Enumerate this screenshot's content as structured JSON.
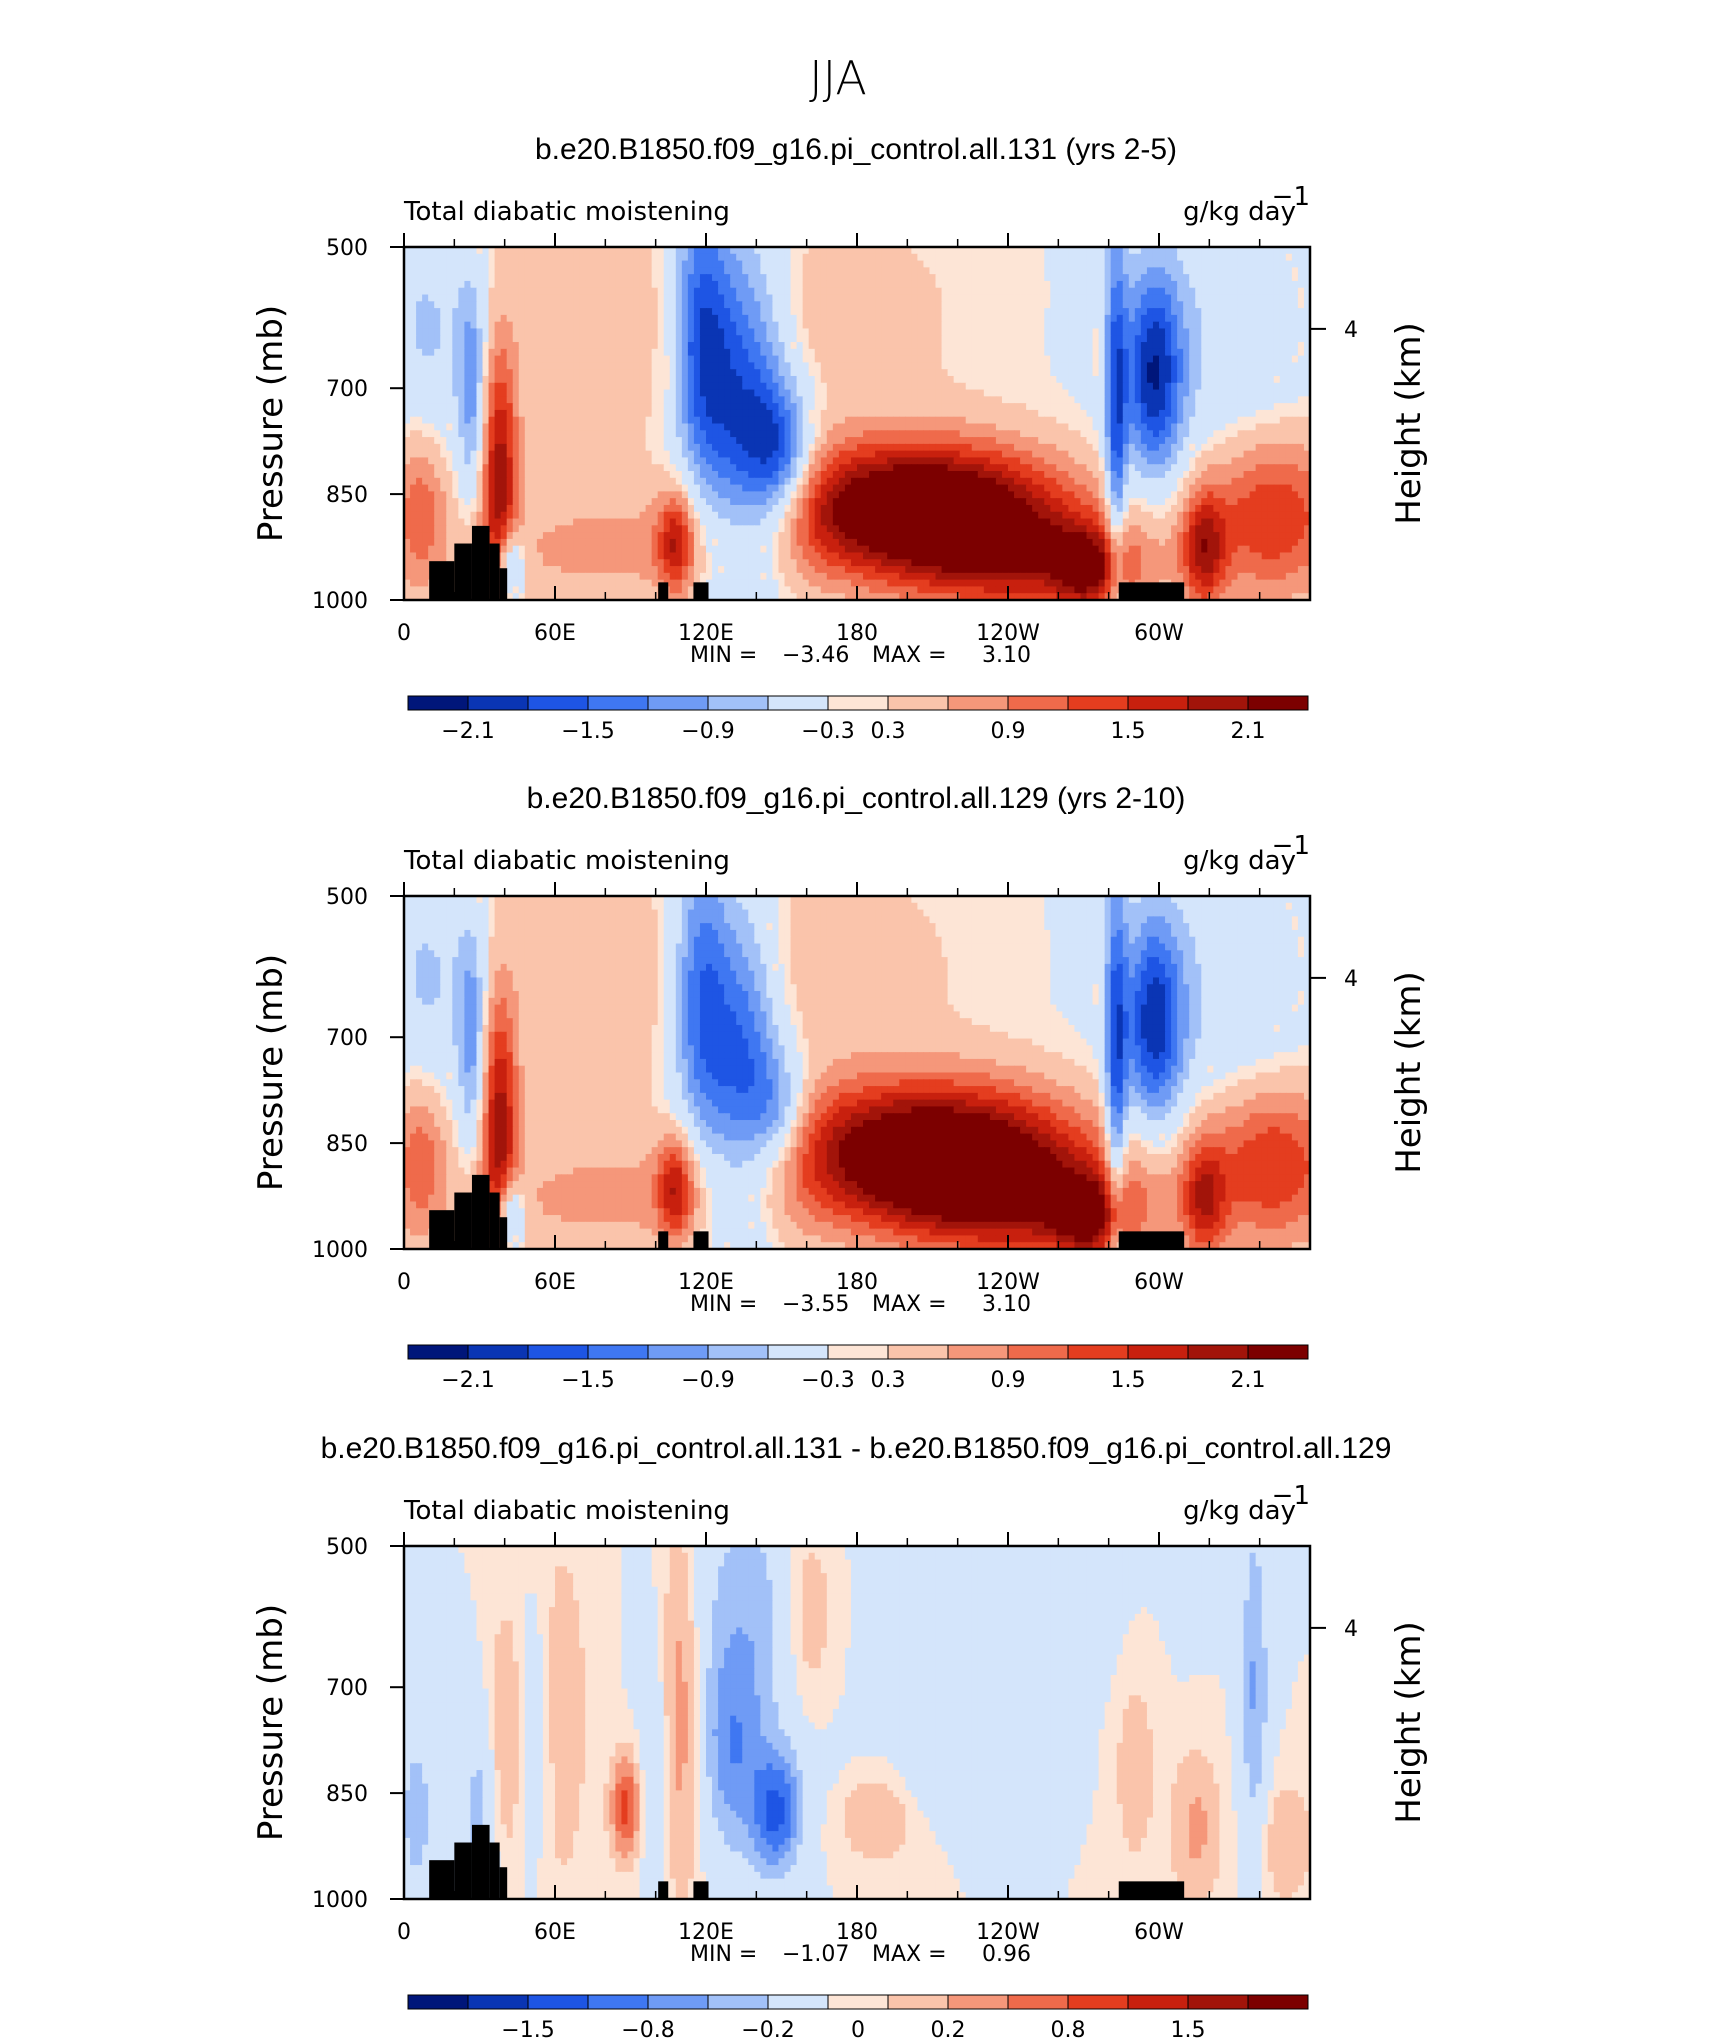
{
  "figure_title": "JJA",
  "colors": {
    "palette": [
      "#00167a",
      "#0a35b4",
      "#1e55e4",
      "#3f77f2",
      "#6f9bf5",
      "#a2c1f8",
      "#d4e5fb",
      "#fde5d6",
      "#fac4ab",
      "#f5977a",
      "#ef6a4b",
      "#e43d1f",
      "#c8200e",
      "#a2140a",
      "#7c0000"
    ],
    "land": "#000000",
    "frame": "#000000"
  },
  "chart_data": [
    {
      "type": "heatmap",
      "title": "b.e20.B1850.f09_g16.pi_control.all.131 (yrs 2-5)",
      "variable": "Total diabatic moistening",
      "units": "g/kg day",
      "units_exponent": "−1",
      "xlabel": "",
      "ylabel": "Pressure (mb)",
      "right_label": "Height (km)",
      "x_ticks": [
        "0",
        "60E",
        "120E",
        "180",
        "120W",
        "60W"
      ],
      "x_tick_lon": [
        0,
        60,
        120,
        180,
        240,
        300
      ],
      "xlim": [
        0,
        360
      ],
      "y_ticks": [
        "500",
        "700",
        "850",
        "1000"
      ],
      "y_tick_p": [
        500,
        700,
        850,
        1000
      ],
      "ylim": [
        500,
        1000
      ],
      "right_ticks": [
        "4"
      ],
      "right_tick_p": [
        616
      ],
      "stats": {
        "min_label": "MIN =",
        "min_value": "−3.46",
        "max_label": "MAX =",
        "max_value": "3.10"
      },
      "colorbar": {
        "labels": [
          "−2.1",
          "−1.5",
          "−0.9",
          "−0.3",
          "0.3",
          "0.9",
          "1.5",
          "2.1"
        ],
        "levels": [
          -2.4,
          -2.1,
          -1.8,
          -1.5,
          -1.2,
          -0.9,
          -0.6,
          -0.3,
          0,
          0.3,
          0.6,
          0.9,
          1.2,
          1.5,
          1.8,
          2.1,
          2.4
        ]
      },
      "fields": [
        {
          "lon": 205,
          "p": 870,
          "slon": 38,
          "sp": 65,
          "value": 3.1
        },
        {
          "lon": 248,
          "p": 945,
          "slon": 35,
          "sp": 55,
          "value": 1.4
        },
        {
          "lon": 272,
          "p": 960,
          "slon": 10,
          "sp": 40,
          "value": 1.4
        },
        {
          "lon": 38,
          "p": 830,
          "slon": 5,
          "sp": 130,
          "value": 1.9
        },
        {
          "lon": 6,
          "p": 870,
          "slon": 8,
          "sp": 80,
          "value": 1.0
        },
        {
          "lon": 345,
          "p": 880,
          "slon": 20,
          "sp": 80,
          "value": 1.5
        },
        {
          "lon": 318,
          "p": 930,
          "slon": 6,
          "sp": 60,
          "value": 1.5
        },
        {
          "lon": 108,
          "p": 920,
          "slon": 5,
          "sp": 50,
          "value": 1.4
        },
        {
          "lon": 80,
          "p": 930,
          "slon": 45,
          "sp": 60,
          "value": 0.55
        },
        {
          "lon": 165,
          "p": 600,
          "slon": 40,
          "sp": 110,
          "value": 0.35
        },
        {
          "lon": 70,
          "p": 620,
          "slon": 35,
          "sp": 150,
          "value": 0.3
        },
        {
          "lon": 135,
          "p": 730,
          "slon": 12,
          "sp": 170,
          "value": -1.8
        },
        {
          "lon": 150,
          "p": 800,
          "slon": 9,
          "sp": 70,
          "value": -1.4
        },
        {
          "lon": 118,
          "p": 620,
          "slon": 8,
          "sp": 140,
          "value": -1.6
        },
        {
          "lon": 298,
          "p": 680,
          "slon": 8,
          "sp": 100,
          "value": -1.9
        },
        {
          "lon": 283,
          "p": 750,
          "slon": 3,
          "sp": 200,
          "value": -1.5
        },
        {
          "lon": 42,
          "p": 950,
          "slon": 4,
          "sp": 40,
          "value": -1.5
        },
        {
          "lon": 27,
          "p": 700,
          "slon": 4,
          "sp": 110,
          "value": -1.0
        },
        {
          "lon": 320,
          "p": 640,
          "slon": 28,
          "sp": 160,
          "value": -0.4
        },
        {
          "lon": 10,
          "p": 620,
          "slon": 14,
          "sp": 120,
          "value": -0.6
        }
      ],
      "land": [
        {
          "lon0": 10,
          "lon1": 20,
          "p_top": 945
        },
        {
          "lon0": 20,
          "lon1": 27,
          "p_top": 920
        },
        {
          "lon0": 27,
          "lon1": 34,
          "p_top": 895
        },
        {
          "lon0": 34,
          "lon1": 38,
          "p_top": 920
        },
        {
          "lon0": 38,
          "lon1": 41,
          "p_top": 955
        },
        {
          "lon0": 101,
          "lon1": 105,
          "p_top": 975
        },
        {
          "lon0": 115,
          "lon1": 121,
          "p_top": 975
        },
        {
          "lon0": 284,
          "lon1": 310,
          "p_top": 975
        }
      ]
    },
    {
      "type": "heatmap",
      "title": "b.e20.B1850.f09_g16.pi_control.all.129 (yrs 2-10)",
      "variable": "Total diabatic moistening",
      "units": "g/kg day",
      "units_exponent": "−1",
      "xlabel": "",
      "ylabel": "Pressure (mb)",
      "right_label": "Height (km)",
      "x_ticks": [
        "0",
        "60E",
        "120E",
        "180",
        "120W",
        "60W"
      ],
      "x_tick_lon": [
        0,
        60,
        120,
        180,
        240,
        300
      ],
      "xlim": [
        0,
        360
      ],
      "y_ticks": [
        "500",
        "700",
        "850",
        "1000"
      ],
      "y_tick_p": [
        500,
        700,
        850,
        1000
      ],
      "ylim": [
        500,
        1000
      ],
      "right_ticks": [
        "4"
      ],
      "right_tick_p": [
        616
      ],
      "stats": {
        "min_label": "MIN =",
        "min_value": "−3.55",
        "max_label": "MAX =",
        "max_value": "3.10"
      },
      "colorbar": {
        "labels": [
          "−2.1",
          "−1.5",
          "−0.9",
          "−0.3",
          "0.3",
          "0.9",
          "1.5",
          "2.1"
        ],
        "levels": [
          -2.4,
          -2.1,
          -1.8,
          -1.5,
          -1.2,
          -0.9,
          -0.6,
          -0.3,
          0,
          0.3,
          0.6,
          0.9,
          1.2,
          1.5,
          1.8,
          2.1,
          2.4
        ]
      },
      "fields": [
        {
          "lon": 210,
          "p": 865,
          "slon": 40,
          "sp": 70,
          "value": 3.1
        },
        {
          "lon": 250,
          "p": 940,
          "slon": 35,
          "sp": 55,
          "value": 1.4
        },
        {
          "lon": 272,
          "p": 960,
          "slon": 10,
          "sp": 40,
          "value": 1.4
        },
        {
          "lon": 38,
          "p": 830,
          "slon": 5,
          "sp": 130,
          "value": 1.9
        },
        {
          "lon": 6,
          "p": 870,
          "slon": 8,
          "sp": 80,
          "value": 1.0
        },
        {
          "lon": 345,
          "p": 880,
          "slon": 20,
          "sp": 80,
          "value": 1.5
        },
        {
          "lon": 318,
          "p": 930,
          "slon": 6,
          "sp": 60,
          "value": 1.3
        },
        {
          "lon": 108,
          "p": 915,
          "slon": 5,
          "sp": 50,
          "value": 1.4
        },
        {
          "lon": 80,
          "p": 930,
          "slon": 45,
          "sp": 60,
          "value": 0.55
        },
        {
          "lon": 165,
          "p": 600,
          "slon": 40,
          "sp": 110,
          "value": 0.35
        },
        {
          "lon": 70,
          "p": 620,
          "slon": 35,
          "sp": 150,
          "value": 0.3
        },
        {
          "lon": 135,
          "p": 740,
          "slon": 10,
          "sp": 160,
          "value": -1.6
        },
        {
          "lon": 150,
          "p": 810,
          "slon": 8,
          "sp": 60,
          "value": -1.0
        },
        {
          "lon": 118,
          "p": 640,
          "slon": 8,
          "sp": 150,
          "value": -1.5
        },
        {
          "lon": 298,
          "p": 680,
          "slon": 8,
          "sp": 100,
          "value": -1.8
        },
        {
          "lon": 283,
          "p": 750,
          "slon": 3,
          "sp": 200,
          "value": -1.5
        },
        {
          "lon": 42,
          "p": 950,
          "slon": 4,
          "sp": 40,
          "value": -1.5
        },
        {
          "lon": 27,
          "p": 700,
          "slon": 4,
          "sp": 110,
          "value": -1.0
        },
        {
          "lon": 320,
          "p": 640,
          "slon": 28,
          "sp": 160,
          "value": -0.4
        },
        {
          "lon": 10,
          "p": 620,
          "slon": 14,
          "sp": 120,
          "value": -0.6
        }
      ],
      "land": [
        {
          "lon0": 10,
          "lon1": 20,
          "p_top": 945
        },
        {
          "lon0": 20,
          "lon1": 27,
          "p_top": 920
        },
        {
          "lon0": 27,
          "lon1": 34,
          "p_top": 895
        },
        {
          "lon0": 34,
          "lon1": 38,
          "p_top": 920
        },
        {
          "lon0": 38,
          "lon1": 41,
          "p_top": 955
        },
        {
          "lon0": 101,
          "lon1": 105,
          "p_top": 975
        },
        {
          "lon0": 115,
          "lon1": 121,
          "p_top": 975
        },
        {
          "lon0": 284,
          "lon1": 310,
          "p_top": 975
        }
      ]
    },
    {
      "type": "heatmap",
      "title": "b.e20.B1850.f09_g16.pi_control.all.131 - b.e20.B1850.f09_g16.pi_control.all.129",
      "variable": "Total diabatic moistening",
      "units": "g/kg day",
      "units_exponent": "−1",
      "xlabel": "",
      "ylabel": "Pressure (mb)",
      "right_label": "Height (km)",
      "x_ticks": [
        "0",
        "60E",
        "120E",
        "180",
        "120W",
        "60W"
      ],
      "x_tick_lon": [
        0,
        60,
        120,
        180,
        240,
        300
      ],
      "xlim": [
        0,
        360
      ],
      "y_ticks": [
        "500",
        "700",
        "850",
        "1000"
      ],
      "y_tick_p": [
        500,
        700,
        850,
        1000
      ],
      "ylim": [
        500,
        1000
      ],
      "right_ticks": [
        "4"
      ],
      "right_tick_p": [
        616
      ],
      "stats": {
        "min_label": "MIN =",
        "min_value": "−1.07",
        "max_label": "MAX =",
        "max_value": "0.96"
      },
      "colorbar": {
        "labels": [
          "−1.5",
          "−0.8",
          "−0.2",
          "0",
          "0.2",
          "0.8",
          "1.5"
        ],
        "levels": [
          -2.0,
          -1.5,
          -1.2,
          -1.0,
          -0.8,
          -0.5,
          -0.2,
          -0.1,
          0,
          0.1,
          0.2,
          0.5,
          0.8,
          1.0,
          1.2,
          1.5,
          2.0
        ]
      },
      "fields": [
        {
          "lon": 88,
          "p": 870,
          "slon": 4,
          "sp": 50,
          "value": 0.9
        },
        {
          "lon": 110,
          "p": 720,
          "slon": 6,
          "sp": 190,
          "value": 0.55
        },
        {
          "lon": 160,
          "p": 600,
          "slon": 8,
          "sp": 110,
          "value": 0.45
        },
        {
          "lon": 188,
          "p": 870,
          "slon": 12,
          "sp": 50,
          "value": 0.45
        },
        {
          "lon": 60,
          "p": 740,
          "slon": 10,
          "sp": 200,
          "value": 0.3
        },
        {
          "lon": 40,
          "p": 770,
          "slon": 5,
          "sp": 120,
          "value": 0.35
        },
        {
          "lon": 315,
          "p": 900,
          "slon": 7,
          "sp": 80,
          "value": 0.4
        },
        {
          "lon": 350,
          "p": 920,
          "slon": 8,
          "sp": 60,
          "value": 0.35
        },
        {
          "lon": 290,
          "p": 780,
          "slon": 8,
          "sp": 150,
          "value": 0.25
        },
        {
          "lon": 148,
          "p": 880,
          "slon": 7,
          "sp": 60,
          "value": -1.0
        },
        {
          "lon": 138,
          "p": 620,
          "slon": 18,
          "sp": 160,
          "value": -0.5
        },
        {
          "lon": 130,
          "p": 800,
          "slon": 8,
          "sp": 100,
          "value": -0.55
        },
        {
          "lon": 338,
          "p": 700,
          "slon": 4,
          "sp": 180,
          "value": -0.6
        },
        {
          "lon": 210,
          "p": 830,
          "slon": 30,
          "sp": 45,
          "value": -0.25
        },
        {
          "lon": 5,
          "p": 880,
          "slon": 5,
          "sp": 90,
          "value": -0.5
        },
        {
          "lon": 30,
          "p": 870,
          "slon": 5,
          "sp": 100,
          "value": -0.45
        },
        {
          "lon": 52,
          "p": 760,
          "slon": 5,
          "sp": 150,
          "value": -0.35
        },
        {
          "lon": 100,
          "p": 820,
          "slon": 4,
          "sp": 130,
          "value": -0.3
        },
        {
          "lon": 270,
          "p": 600,
          "slon": 20,
          "sp": 110,
          "value": -0.2
        }
      ],
      "land": [
        {
          "lon0": 10,
          "lon1": 20,
          "p_top": 945
        },
        {
          "lon0": 20,
          "lon1": 27,
          "p_top": 920
        },
        {
          "lon0": 27,
          "lon1": 34,
          "p_top": 895
        },
        {
          "lon0": 34,
          "lon1": 38,
          "p_top": 920
        },
        {
          "lon0": 38,
          "lon1": 41,
          "p_top": 955
        },
        {
          "lon0": 101,
          "lon1": 105,
          "p_top": 975
        },
        {
          "lon0": 115,
          "lon1": 121,
          "p_top": 975
        },
        {
          "lon0": 284,
          "lon1": 310,
          "p_top": 975
        }
      ]
    }
  ]
}
